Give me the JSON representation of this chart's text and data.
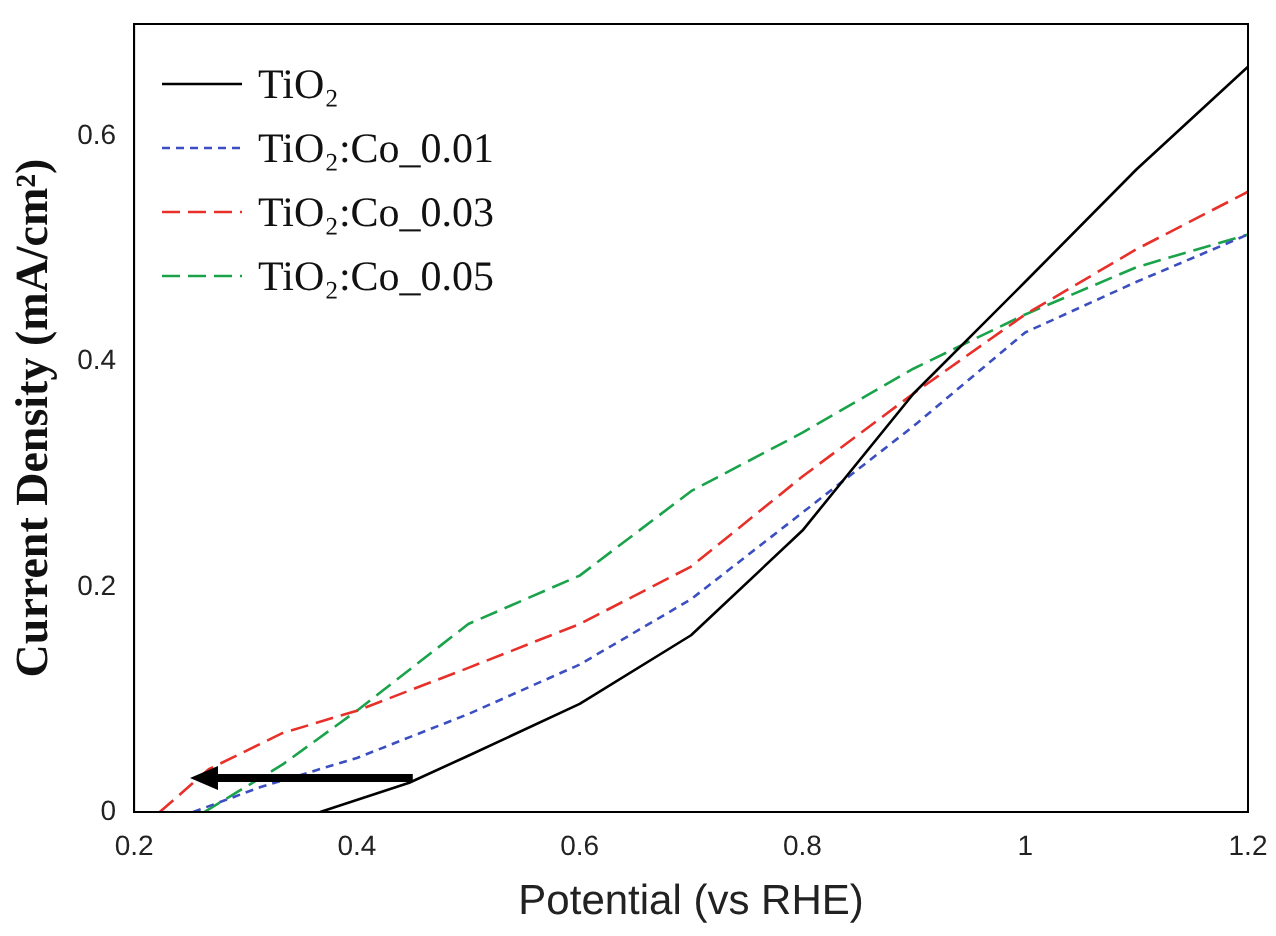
{
  "chart_data": {
    "type": "line",
    "xlabel": "Potential (vs RHE)",
    "ylabel": "Current Density (mA/cm²)",
    "xlim": [
      0.2,
      1.2
    ],
    "ylim": [
      0,
      0.7
    ],
    "xticks": [
      0.2,
      0.4,
      0.6,
      0.8,
      1,
      1.2
    ],
    "yticks": [
      0,
      0.2,
      0.4,
      0.6
    ],
    "grid": false,
    "legend": "top left",
    "marker": "none",
    "series": [
      {
        "name": "TiO₂",
        "color": "#000000",
        "line_style": "solid",
        "x": [
          0.367,
          0.447,
          0.5,
          0.6,
          0.7,
          0.8,
          0.9,
          1.0,
          1.1,
          1.2
        ],
        "values": [
          0,
          0.026,
          0.05,
          0.096,
          0.157,
          0.25,
          0.372,
          0.471,
          0.571,
          0.662
        ]
      },
      {
        "name": "TiO₂:Co_0.01",
        "color": "#3b4fc0",
        "line_style": "dotted",
        "x": [
          0.253,
          0.313,
          0.4,
          0.5,
          0.6,
          0.7,
          0.8,
          0.9,
          1.0,
          1.1,
          1.2
        ],
        "values": [
          0,
          0.022,
          0.048,
          0.087,
          0.131,
          0.189,
          0.266,
          0.343,
          0.426,
          0.471,
          0.513
        ]
      },
      {
        "name": "TiO₂:Co_0.03",
        "color": "#e8302a",
        "line_style": "dashed",
        "x": [
          0.223,
          0.267,
          0.333,
          0.4,
          0.5,
          0.6,
          0.7,
          0.8,
          0.9,
          1.0,
          1.1,
          1.2
        ],
        "values": [
          0,
          0.038,
          0.07,
          0.09,
          0.128,
          0.167,
          0.218,
          0.298,
          0.372,
          0.442,
          0.5,
          0.551
        ]
      },
      {
        "name": "TiO₂:Co_0.05",
        "color": "#1aa34a",
        "line_style": "dashed",
        "x": [
          0.263,
          0.333,
          0.4,
          0.5,
          0.6,
          0.7,
          0.8,
          0.9,
          1.0,
          1.1,
          1.2
        ],
        "values": [
          0,
          0.042,
          0.09,
          0.167,
          0.21,
          0.285,
          0.337,
          0.394,
          0.442,
          0.484,
          0.513
        ]
      }
    ]
  }
}
